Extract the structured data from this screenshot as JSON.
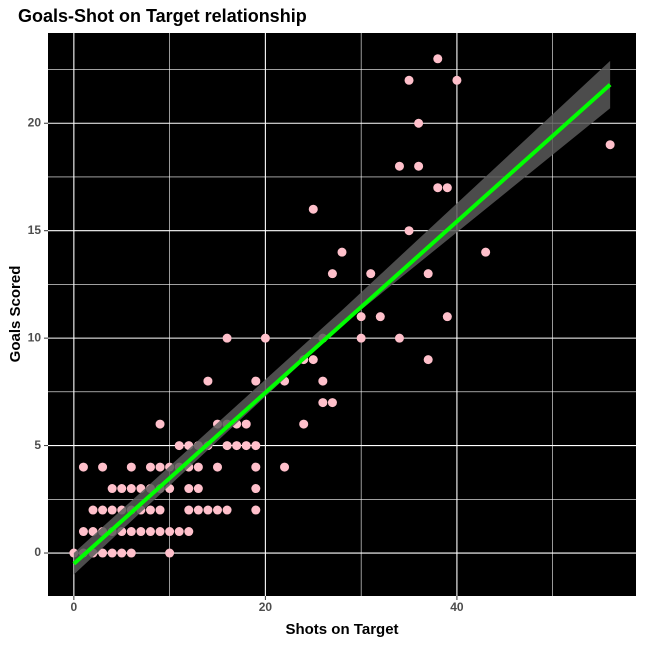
{
  "chart_data": {
    "type": "scatter",
    "title": "Goals-Shot on Target relationship",
    "x_label": "Shots on Target",
    "y_label": "Goals Scored",
    "xlim": [
      -2.7,
      58.7
    ],
    "ylim": [
      -2.0,
      24.2
    ],
    "xticks": [
      0,
      20,
      40
    ],
    "yticks": [
      0,
      5,
      10,
      15,
      20
    ],
    "xminor": [
      10,
      30,
      50
    ],
    "yminor": [
      2.5,
      7.5,
      12.5,
      17.5,
      22.5
    ],
    "grid": true,
    "background": "#000000",
    "point_color": "#ffc0cb",
    "line_color": "#00ff00",
    "band_color": "#595959",
    "x": [
      38,
      35,
      40,
      36,
      34,
      36,
      56,
      38,
      39,
      25,
      35,
      28,
      43,
      27,
      31,
      37,
      30,
      32,
      39,
      16,
      20,
      26,
      30,
      34,
      37,
      24,
      25,
      14,
      19,
      22,
      26,
      26,
      27,
      9,
      15,
      16,
      17,
      18,
      24,
      11,
      12,
      13,
      14,
      16,
      17,
      18,
      19,
      1,
      3,
      6,
      8,
      9,
      10,
      11,
      12,
      13,
      15,
      19,
      22,
      4,
      5,
      6,
      7,
      8,
      9,
      10,
      12,
      13,
      19,
      2,
      3,
      4,
      5,
      6,
      7,
      8,
      9,
      12,
      13,
      14,
      15,
      16,
      19,
      1,
      2,
      3,
      4,
      5,
      6,
      7,
      8,
      9,
      10,
      11,
      12,
      0,
      1,
      2,
      3,
      4,
      5,
      6,
      10
    ],
    "y": [
      23,
      22,
      22,
      20,
      18,
      18,
      19,
      17,
      17,
      16,
      15,
      14,
      14,
      13,
      13,
      13,
      11,
      11,
      11,
      10,
      10,
      10,
      10,
      10,
      9,
      9,
      9,
      8,
      8,
      8,
      8,
      7,
      7,
      6,
      6,
      6,
      6,
      6,
      6,
      5,
      5,
      5,
      5,
      5,
      5,
      5,
      5,
      4,
      4,
      4,
      4,
      4,
      4,
      4,
      4,
      4,
      4,
      4,
      4,
      3,
      3,
      3,
      3,
      3,
      3,
      3,
      3,
      3,
      3,
      2,
      2,
      2,
      2,
      2,
      2,
      2,
      2,
      2,
      2,
      2,
      2,
      2,
      2,
      1,
      1,
      1,
      1,
      1,
      1,
      1,
      1,
      1,
      1,
      1,
      1,
      0,
      0,
      0,
      0,
      0,
      0,
      0,
      0
    ],
    "fit": {
      "x": [
        0,
        56
      ],
      "y": [
        -0.5,
        21.8
      ]
    },
    "band": {
      "x": [
        0,
        28,
        56
      ],
      "lower": [
        -1.0,
        10.6,
        20.7
      ],
      "upper": [
        0.0,
        11.3,
        22.9
      ]
    }
  }
}
